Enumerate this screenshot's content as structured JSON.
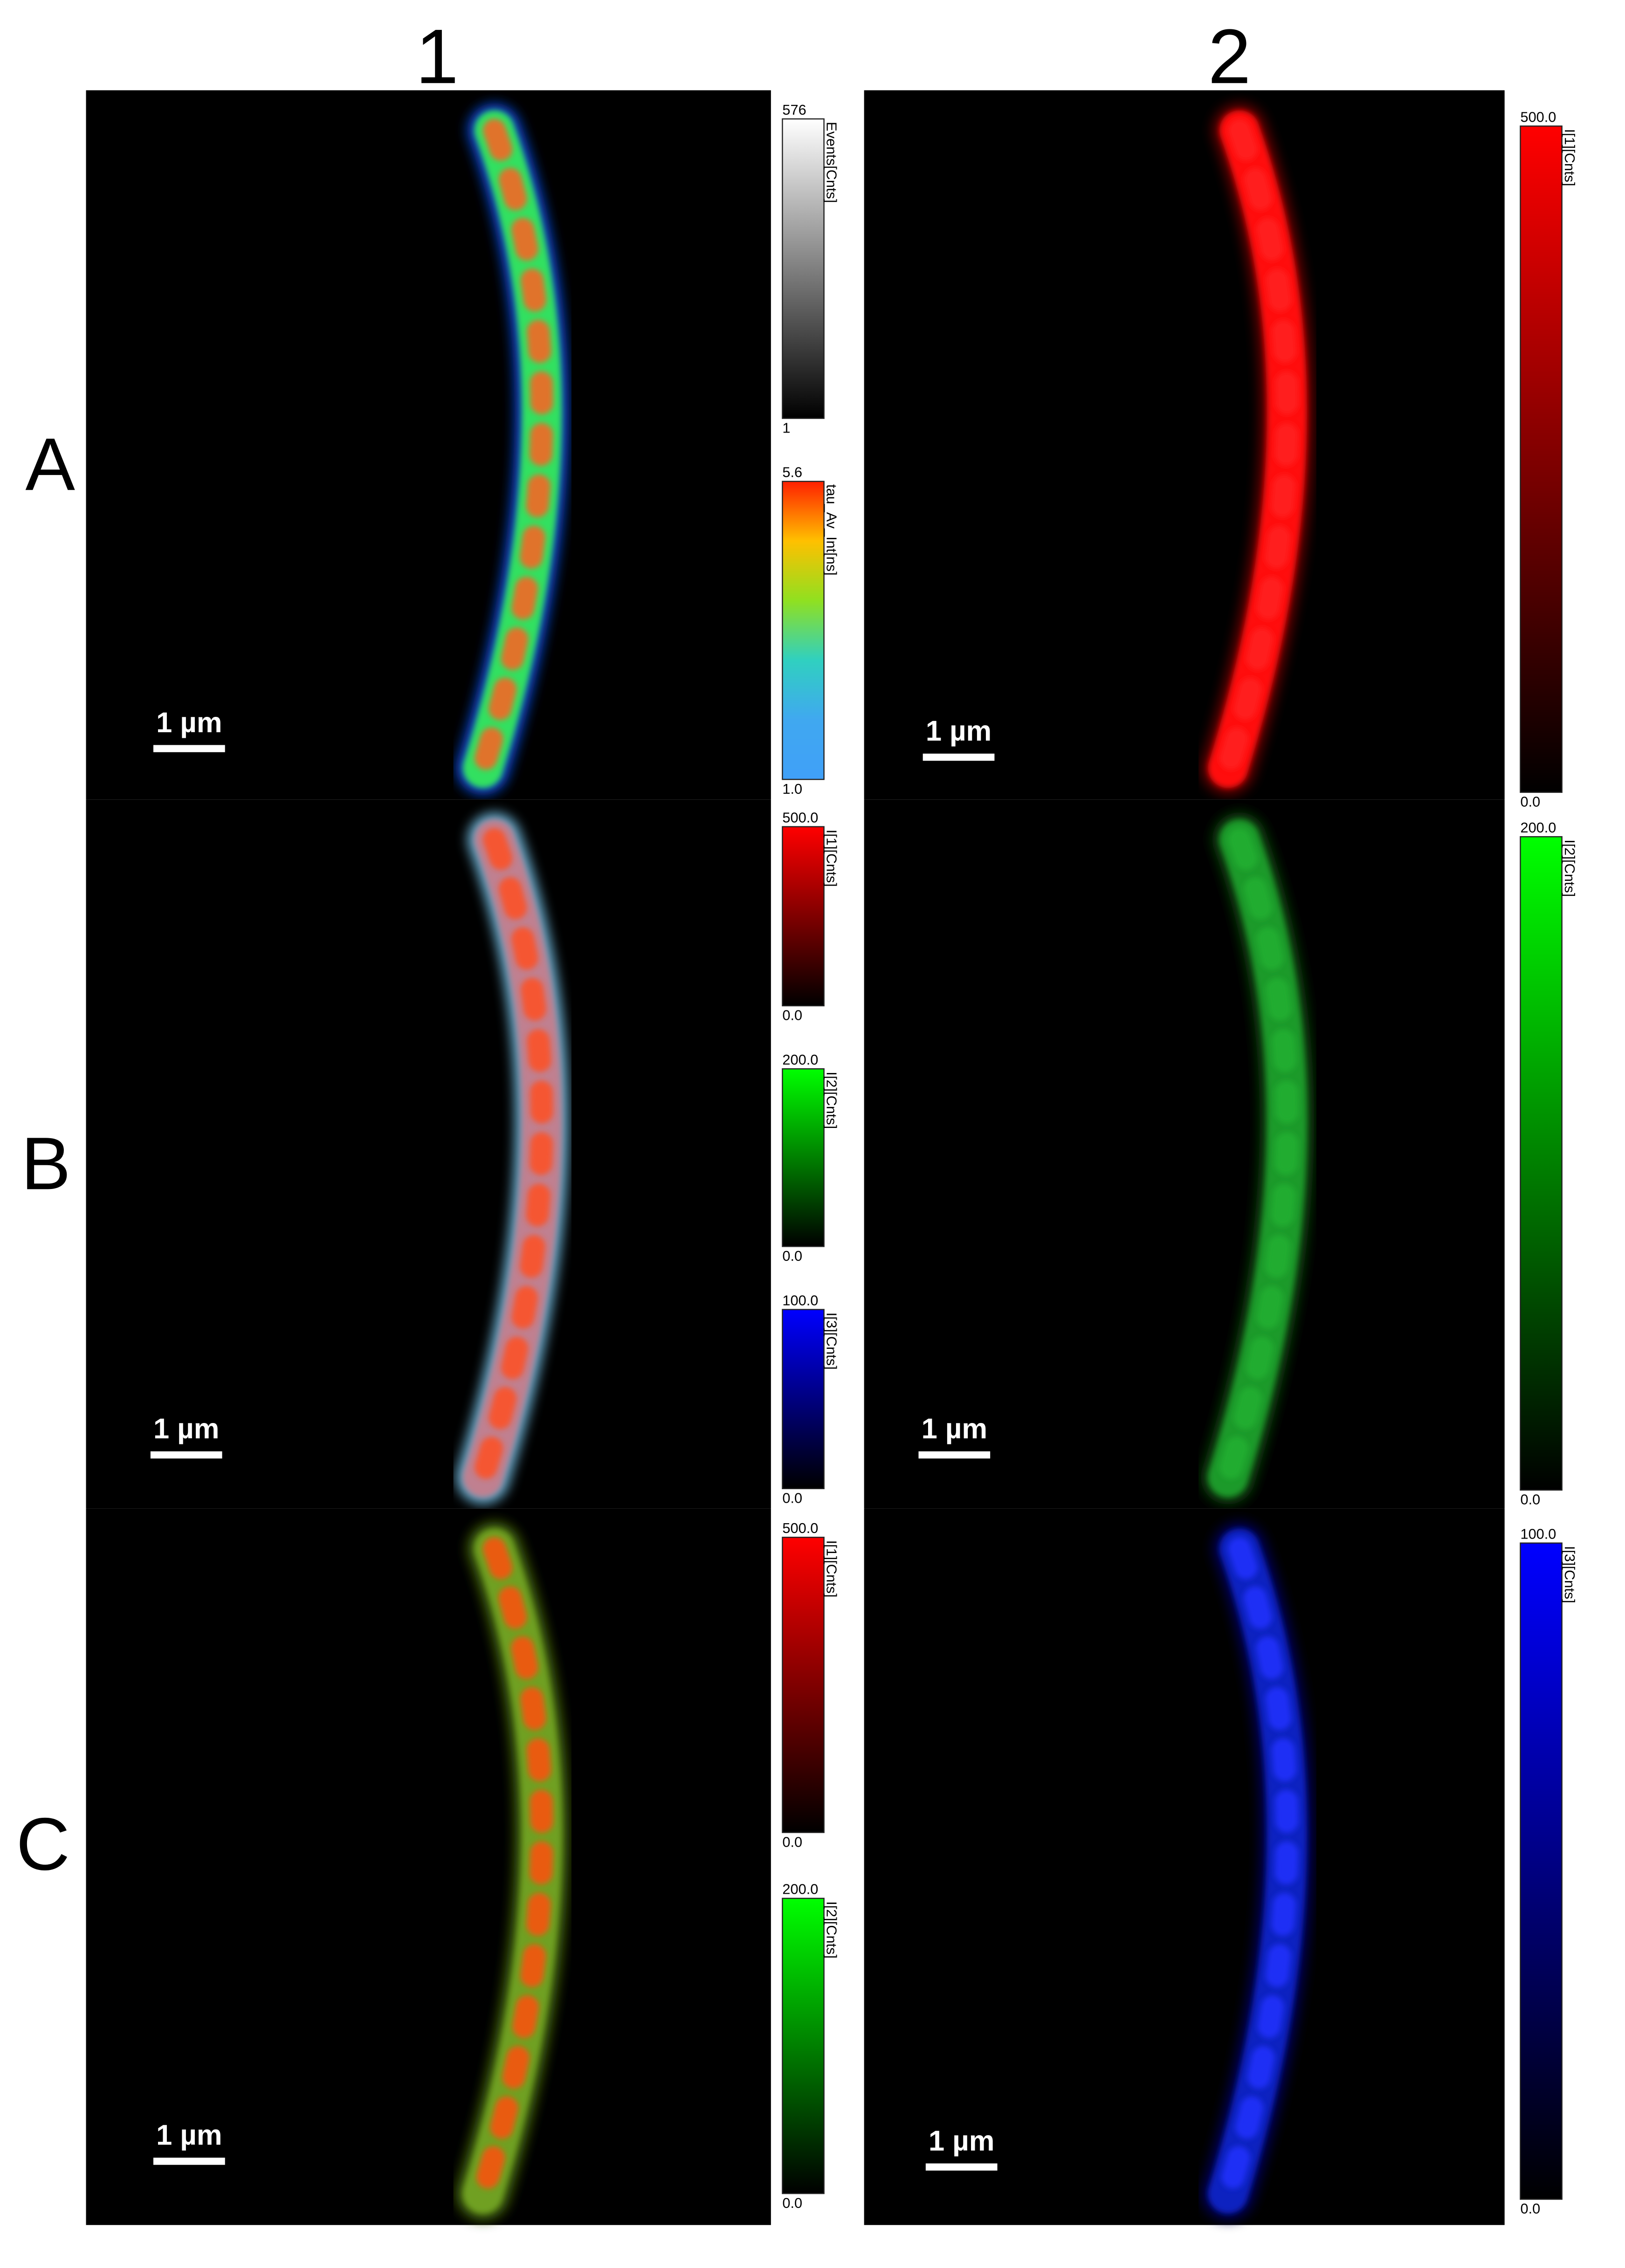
{
  "column_labels": [
    "1",
    "2"
  ],
  "row_labels": [
    "A",
    "B",
    "C"
  ],
  "panels": [
    {
      "scale_bar": "1 µm",
      "colorbars": [
        {
          "max": "576",
          "title": "Events[Cnts]",
          "min": "1"
        },
        {
          "max": "5.6",
          "title": "tau_Av_Int[ns]",
          "min": "1.0"
        }
      ]
    },
    {
      "scale_bar": "1 µm",
      "colorbars": [
        {
          "max": "500.0",
          "title": "I[1][Cnts]",
          "min": "0.0"
        }
      ]
    },
    {
      "scale_bar": "1 µm",
      "colorbars": [
        {
          "max": "500.0",
          "title": "I[1][Cnts]",
          "min": "0.0"
        },
        {
          "max": "200.0",
          "title": "I[2][Cnts]",
          "min": "0.0"
        },
        {
          "max": "100.0",
          "title": "I[3][Cnts]",
          "min": "0.0"
        }
      ]
    },
    {
      "scale_bar": "1 µm",
      "colorbars": [
        {
          "max": "200.0",
          "title": "I[2][Cnts]",
          "min": "0.0"
        }
      ]
    },
    {
      "scale_bar": "1 µm",
      "colorbars": [
        {
          "max": "500.0",
          "title": "I[1][Cnts]",
          "min": "0.0"
        },
        {
          "max": "200.0",
          "title": "I[2][Cnts]",
          "min": "0.0"
        }
      ]
    },
    {
      "scale_bar": "1 µm",
      "colorbars": [
        {
          "max": "100.0",
          "title": "I[3][Cnts]",
          "min": "0.0"
        }
      ]
    }
  ]
}
